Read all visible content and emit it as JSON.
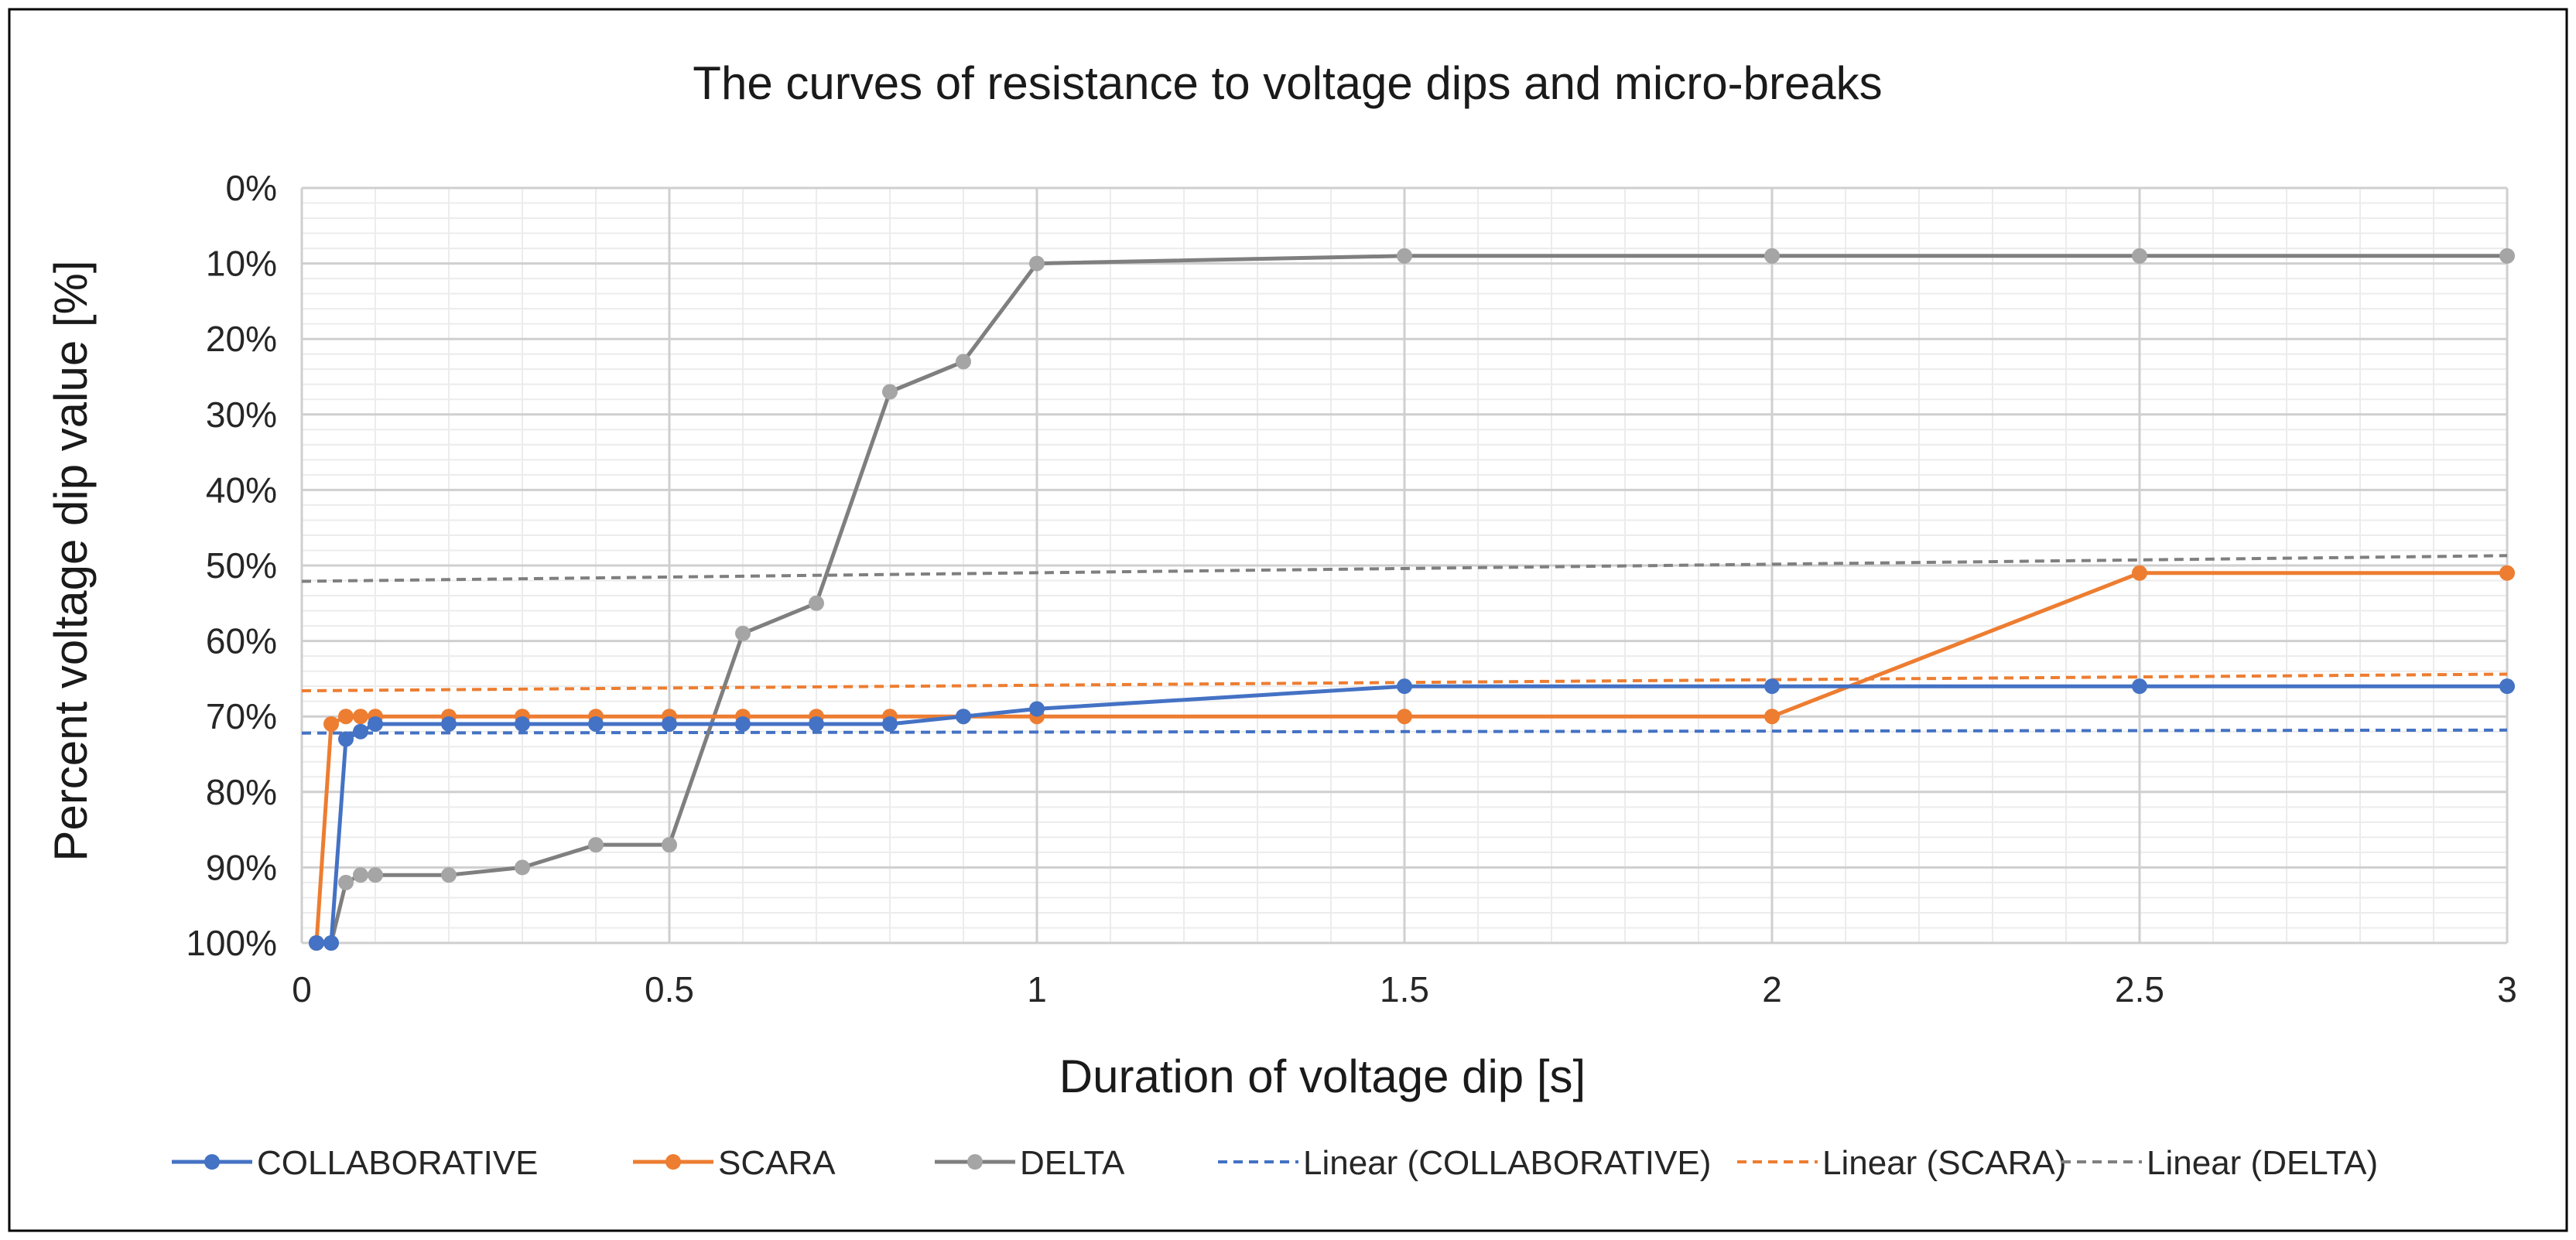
{
  "chart_data": {
    "type": "line",
    "title": "The curves of resistance to voltage dips and micro-breaks",
    "xlabel": "Duration of voltage dip [s]",
    "ylabel": "Percent voltage dip value [%]",
    "xlim": [
      0,
      3
    ],
    "ylim": [
      0,
      100
    ],
    "y_reversed": true,
    "x_ticks": [
      "0",
      "0.5",
      "1",
      "1.5",
      "2",
      "2.5",
      "3"
    ],
    "y_ticks": [
      "0%",
      "10%",
      "20%",
      "30%",
      "40%",
      "50%",
      "60%",
      "70%",
      "80%",
      "90%",
      "100%"
    ],
    "grid": true,
    "legend_position": "bottom",
    "series": [
      {
        "name": "COLLABORATIVE",
        "color": "#4472C4",
        "style": "solid-markers",
        "x": [
          0.02,
          0.04,
          0.06,
          0.08,
          0.1,
          0.2,
          0.3,
          0.4,
          0.5,
          0.6,
          0.7,
          0.8,
          0.9,
          1,
          1.5,
          2,
          2.5,
          3
        ],
        "y": [
          100,
          100,
          73,
          72,
          71,
          71,
          71,
          71,
          71,
          71,
          71,
          71,
          70,
          69,
          66,
          66,
          66,
          66
        ]
      },
      {
        "name": "SCARA",
        "color": "#ED7D31",
        "style": "solid-markers",
        "x": [
          0.02,
          0.04,
          0.06,
          0.08,
          0.1,
          0.2,
          0.3,
          0.4,
          0.5,
          0.6,
          0.7,
          0.8,
          0.9,
          1,
          1.5,
          2,
          2.5,
          3
        ],
        "y": [
          100,
          71,
          70,
          70,
          70,
          70,
          70,
          70,
          70,
          70,
          70,
          70,
          70,
          70,
          70,
          70,
          51,
          51
        ]
      },
      {
        "name": "DELTA",
        "color": "#7F7F7F",
        "marker_color": "#A5A5A5",
        "style": "solid-markers",
        "x": [
          0.02,
          0.04,
          0.06,
          0.08,
          0.1,
          0.2,
          0.3,
          0.4,
          0.5,
          0.6,
          0.7,
          0.8,
          0.9,
          1,
          1.5,
          2,
          2.5,
          3
        ],
        "y": [
          100,
          100,
          92,
          91,
          91,
          91,
          90,
          87,
          87,
          59,
          55,
          27,
          23,
          10,
          9,
          9,
          9,
          9
        ]
      },
      {
        "name": "Linear (COLLABORATIVE)",
        "color": "#4472C4",
        "style": "dashed",
        "x": [
          0,
          3
        ],
        "y": [
          72.2,
          71.8
        ]
      },
      {
        "name": "Linear (SCARA)",
        "color": "#ED7D31",
        "style": "dashed",
        "x": [
          0,
          3
        ],
        "y": [
          66.6,
          64.4
        ]
      },
      {
        "name": "Linear (DELTA)",
        "color": "#7F7F7F",
        "style": "dashed",
        "x": [
          0,
          3
        ],
        "y": [
          52.1,
          48.7
        ]
      }
    ]
  }
}
